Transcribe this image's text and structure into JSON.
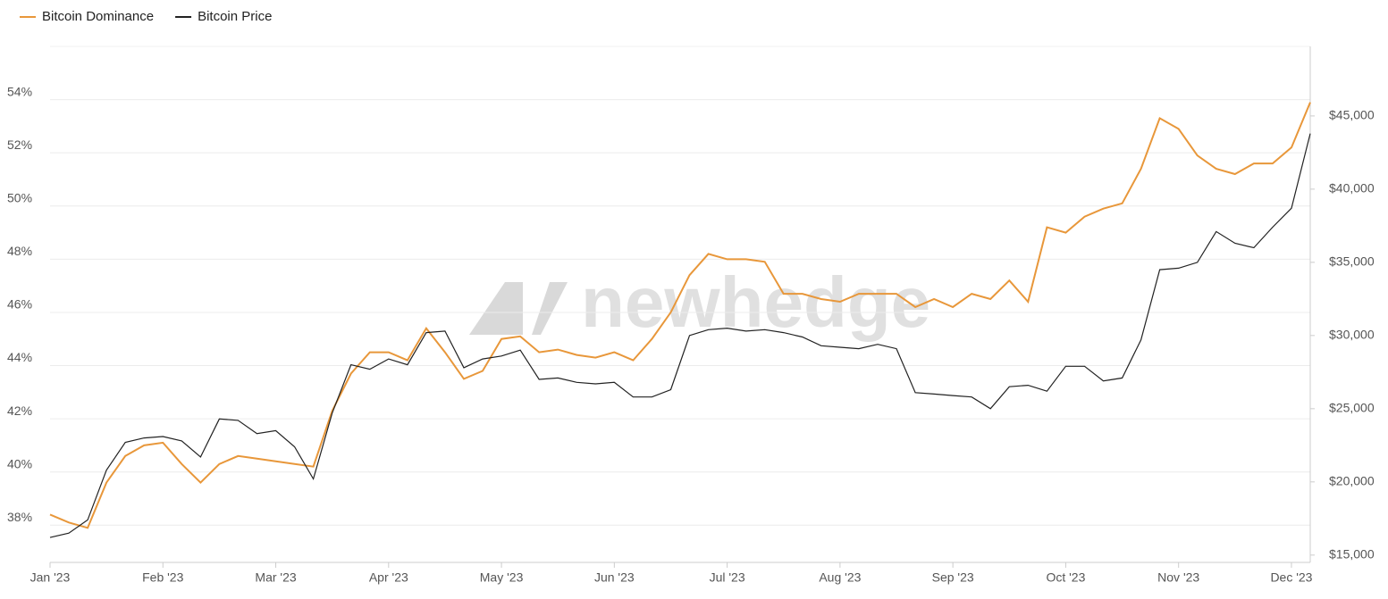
{
  "chart_data": {
    "type": "line",
    "watermark": "newhedge",
    "categories": [
      "Jan '23",
      null,
      null,
      null,
      null,
      null,
      "Feb '23",
      null,
      null,
      null,
      null,
      null,
      "Mar '23",
      null,
      null,
      null,
      null,
      null,
      "Apr '23",
      null,
      null,
      null,
      null,
      null,
      "May '23",
      null,
      null,
      null,
      null,
      null,
      "Jun '23",
      null,
      null,
      null,
      null,
      null,
      "Jul '23",
      null,
      null,
      null,
      null,
      null,
      "Aug '23",
      null,
      null,
      null,
      null,
      null,
      "Sep '23",
      null,
      null,
      null,
      null,
      null,
      "Oct '23",
      null,
      null,
      null,
      null,
      null,
      "Nov '23",
      null,
      null,
      null,
      null,
      null,
      "Dec '23",
      null
    ],
    "series": [
      {
        "name": "Bitcoin Dominance",
        "color": "#e8973a",
        "axis": "y",
        "values": [
          38.4,
          38.1,
          37.9,
          39.6,
          40.6,
          41.0,
          41.1,
          40.3,
          39.6,
          40.3,
          40.6,
          40.5,
          40.4,
          40.3,
          40.2,
          42.3,
          43.7,
          44.5,
          44.5,
          44.2,
          45.4,
          44.5,
          43.5,
          43.8,
          45.0,
          45.1,
          44.5,
          44.6,
          44.4,
          44.3,
          44.5,
          44.2,
          45.0,
          46.0,
          47.4,
          48.2,
          48.0,
          48.0,
          47.9,
          46.7,
          46.7,
          46.5,
          46.4,
          46.7,
          46.7,
          46.7,
          46.2,
          46.5,
          46.2,
          46.7,
          46.5,
          47.2,
          46.4,
          49.2,
          49.0,
          49.6,
          49.9,
          50.1,
          51.4,
          53.3,
          52.9,
          51.9,
          51.4,
          51.2,
          51.6,
          51.6,
          52.2,
          53.9
        ]
      },
      {
        "name": "Bitcoin Price",
        "color": "#222222",
        "axis": "y2",
        "values": [
          16200,
          16500,
          17400,
          20800,
          22700,
          23000,
          23100,
          22800,
          21700,
          24300,
          24200,
          23300,
          23500,
          22400,
          20200,
          24700,
          28000,
          27700,
          28400,
          28000,
          30200,
          30300,
          27800,
          28400,
          28600,
          29000,
          27000,
          27100,
          26800,
          26700,
          26800,
          25800,
          25800,
          26300,
          30000,
          30400,
          30500,
          30300,
          30400,
          30200,
          29900,
          29300,
          29200,
          29100,
          29400,
          29100,
          26100,
          26000,
          25900,
          25800,
          25000,
          26500,
          26600,
          26200,
          27900,
          27900,
          26900,
          27100,
          29700,
          34500,
          34600,
          35000,
          37100,
          36300,
          36000,
          37400,
          38700,
          43800
        ]
      }
    ],
    "ylim": [
      36.6,
      56.0
    ],
    "yticks": [
      {
        "value": 38,
        "label": "38%"
      },
      {
        "value": 40,
        "label": "40%"
      },
      {
        "value": 42,
        "label": "42%"
      },
      {
        "value": 44,
        "label": "44%"
      },
      {
        "value": 46,
        "label": "46%"
      },
      {
        "value": 48,
        "label": "48%"
      },
      {
        "value": 50,
        "label": "50%"
      },
      {
        "value": 52,
        "label": "52%"
      },
      {
        "value": 54,
        "label": "54%"
      }
    ],
    "y2lim": [
      14500,
      49750
    ],
    "y2ticks": [
      {
        "value": 15000,
        "label": "$15,000"
      },
      {
        "value": 20000,
        "label": "$20,000"
      },
      {
        "value": 25000,
        "label": "$25,000"
      },
      {
        "value": 30000,
        "label": "$30,000"
      },
      {
        "value": 35000,
        "label": "$35,000"
      },
      {
        "value": 40000,
        "label": "$40,000"
      },
      {
        "value": 45000,
        "label": "$45,000"
      }
    ],
    "grid": true,
    "legend": "top-left"
  }
}
